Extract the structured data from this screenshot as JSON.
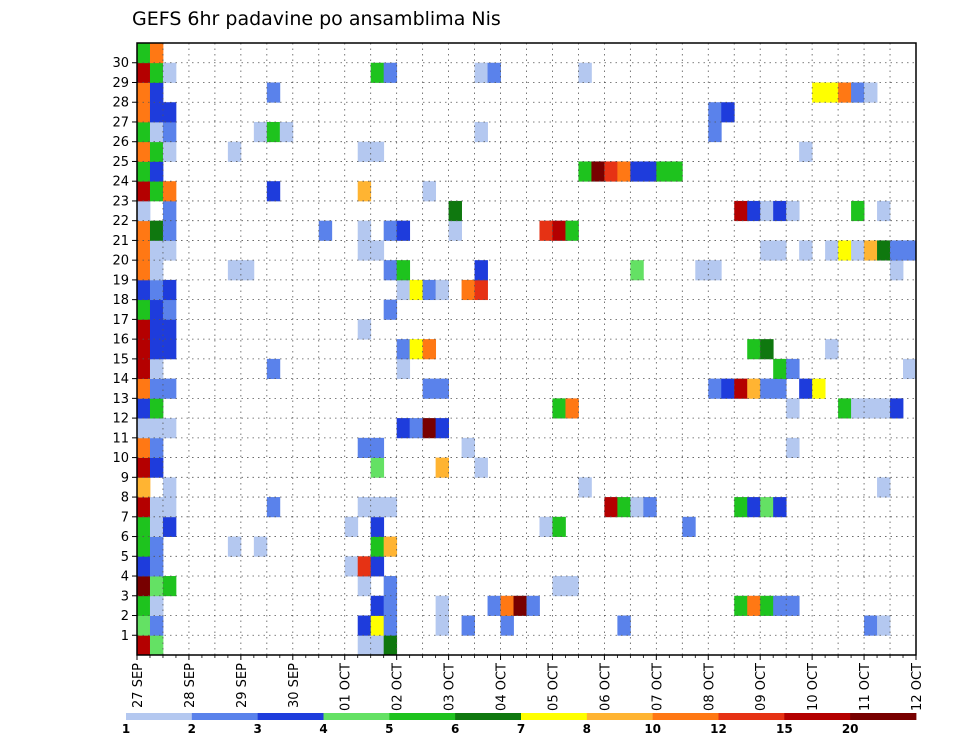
{
  "chart_data": {
    "type": "heatmap",
    "title": "GEFS 6hr padavine po ansamblima Nis",
    "xlabel": "",
    "ylabel": "",
    "x_tick_labels": [
      "27 SEP",
      "28 SEP",
      "29 SEP",
      "30 SEP",
      "01 OCT",
      "02 OCT",
      "03 OCT",
      "04 OCT",
      "05 OCT",
      "06 OCT",
      "07 OCT",
      "08 OCT",
      "09 OCT",
      "10 OCT",
      "11 OCT",
      "12 OCT"
    ],
    "y_tick_labels": [
      "1",
      "2",
      "3",
      "4",
      "5",
      "6",
      "7",
      "8",
      "9",
      "10",
      "11",
      "12",
      "13",
      "14",
      "15",
      "16",
      "17",
      "18",
      "19",
      "20",
      "21",
      "22",
      "23",
      "24",
      "25",
      "26",
      "27",
      "28",
      "29",
      "30"
    ],
    "time_steps": 60,
    "steps_per_day": 4,
    "members": 31,
    "grid": true,
    "legend_placement": "bottom",
    "legend": {
      "labels": [
        "1",
        "2",
        "3",
        "4",
        "5",
        "6",
        "7",
        "8",
        "10",
        "12",
        "15",
        "20"
      ],
      "colors": [
        "#b4c8f0",
        "#5a82eb",
        "#1e3cdc",
        "#64e164",
        "#1ec31e",
        "#0f780f",
        "#ffff00",
        "#ffb432",
        "#ff7814",
        "#e63214",
        "#b40000",
        "#780000"
      ]
    },
    "cells_format": "[time_step, member, precipitation_mm]",
    "cells": [
      [
        0,
        0,
        15
      ],
      [
        1,
        0,
        4
      ],
      [
        0,
        1,
        4
      ],
      [
        1,
        1,
        2
      ],
      [
        0,
        2,
        5
      ],
      [
        1,
        2,
        1
      ],
      [
        1,
        2,
        1
      ],
      [
        0,
        3,
        20
      ],
      [
        1,
        3,
        4
      ],
      [
        2,
        3,
        5
      ],
      [
        0,
        4,
        3
      ],
      [
        1,
        4,
        2
      ],
      [
        0,
        5,
        5
      ],
      [
        1,
        5,
        2
      ],
      [
        0,
        6,
        5
      ],
      [
        1,
        6,
        1
      ],
      [
        2,
        6,
        3
      ],
      [
        0,
        7,
        15
      ],
      [
        1,
        7,
        1
      ],
      [
        2,
        7,
        1
      ],
      [
        0,
        8,
        8
      ],
      [
        2,
        8,
        1
      ],
      [
        0,
        9,
        15
      ],
      [
        1,
        9,
        3
      ],
      [
        0,
        10,
        10
      ],
      [
        1,
        10,
        2
      ],
      [
        0,
        11,
        1
      ],
      [
        1,
        11,
        1
      ],
      [
        2,
        11,
        1
      ],
      [
        0,
        12,
        3
      ],
      [
        1,
        12,
        5
      ],
      [
        0,
        13,
        10
      ],
      [
        1,
        13,
        2
      ],
      [
        2,
        13,
        2
      ],
      [
        0,
        14,
        15
      ],
      [
        1,
        14,
        1
      ],
      [
        0,
        15,
        15
      ],
      [
        1,
        15,
        3
      ],
      [
        2,
        15,
        3
      ],
      [
        0,
        16,
        15
      ],
      [
        1,
        16,
        3
      ],
      [
        2,
        16,
        3
      ],
      [
        0,
        17,
        5
      ],
      [
        1,
        17,
        3
      ],
      [
        2,
        17,
        2
      ],
      [
        0,
        18,
        3
      ],
      [
        1,
        18,
        2
      ],
      [
        2,
        18,
        3
      ],
      [
        0,
        19,
        10
      ],
      [
        1,
        19,
        1
      ],
      [
        0,
        20,
        10
      ],
      [
        1,
        20,
        1
      ],
      [
        2,
        20,
        1
      ],
      [
        0,
        21,
        10
      ],
      [
        1,
        21,
        6
      ],
      [
        2,
        21,
        2
      ],
      [
        0,
        22,
        1
      ],
      [
        2,
        22,
        2
      ],
      [
        0,
        23,
        15
      ],
      [
        1,
        23,
        5
      ],
      [
        2,
        23,
        10
      ],
      [
        0,
        24,
        5
      ],
      [
        1,
        24,
        3
      ],
      [
        0,
        25,
        10
      ],
      [
        1,
        25,
        5
      ],
      [
        2,
        25,
        1
      ],
      [
        0,
        26,
        5
      ],
      [
        1,
        26,
        1
      ],
      [
        2,
        26,
        2
      ],
      [
        0,
        27,
        10
      ],
      [
        1,
        27,
        3
      ],
      [
        2,
        27,
        3
      ],
      [
        0,
        28,
        10
      ],
      [
        1,
        28,
        3
      ],
      [
        0,
        29,
        15
      ],
      [
        1,
        29,
        5
      ],
      [
        2,
        29,
        1
      ],
      [
        0,
        30,
        5
      ],
      [
        1,
        30,
        10
      ],
      [
        17,
        0,
        1
      ],
      [
        18,
        0,
        1
      ],
      [
        19,
        0,
        6
      ],
      [
        17,
        1,
        3
      ],
      [
        18,
        1,
        7
      ],
      [
        19,
        1,
        2
      ],
      [
        23,
        1,
        1
      ],
      [
        25,
        1,
        2
      ],
      [
        28,
        1,
        2
      ],
      [
        37,
        1,
        2
      ],
      [
        56,
        1,
        2
      ],
      [
        57,
        1,
        1
      ],
      [
        18,
        2,
        3
      ],
      [
        19,
        2,
        2
      ],
      [
        23,
        2,
        1
      ],
      [
        27,
        2,
        2
      ],
      [
        28,
        2,
        10
      ],
      [
        29,
        2,
        20
      ],
      [
        30,
        2,
        2
      ],
      [
        46,
        2,
        5
      ],
      [
        47,
        2,
        10
      ],
      [
        48,
        2,
        5
      ],
      [
        49,
        2,
        2
      ],
      [
        50,
        2,
        2
      ],
      [
        17,
        3,
        1
      ],
      [
        19,
        3,
        2
      ],
      [
        32,
        3,
        1
      ],
      [
        33,
        3,
        1
      ],
      [
        16,
        4,
        1
      ],
      [
        17,
        4,
        12
      ],
      [
        18,
        4,
        3
      ],
      [
        7,
        5,
        1
      ],
      [
        9,
        5,
        1
      ],
      [
        18,
        5,
        5
      ],
      [
        19,
        5,
        8
      ],
      [
        16,
        6,
        1
      ],
      [
        18,
        6,
        3
      ],
      [
        31,
        6,
        1
      ],
      [
        32,
        6,
        5
      ],
      [
        42,
        6,
        2
      ],
      [
        10,
        7,
        2
      ],
      [
        17,
        7,
        1
      ],
      [
        18,
        7,
        1
      ],
      [
        19,
        7,
        1
      ],
      [
        36,
        7,
        15
      ],
      [
        37,
        7,
        5
      ],
      [
        38,
        7,
        1
      ],
      [
        39,
        7,
        2
      ],
      [
        46,
        7,
        5
      ],
      [
        47,
        7,
        3
      ],
      [
        48,
        7,
        4
      ],
      [
        49,
        7,
        3
      ],
      [
        34,
        8,
        1
      ],
      [
        57,
        8,
        1
      ],
      [
        18,
        9,
        4
      ],
      [
        23,
        9,
        8
      ],
      [
        26,
        9,
        1
      ],
      [
        17,
        10,
        2
      ],
      [
        18,
        10,
        2
      ],
      [
        25,
        10,
        1
      ],
      [
        50,
        10,
        1
      ],
      [
        20,
        11,
        3
      ],
      [
        21,
        11,
        2
      ],
      [
        22,
        11,
        20
      ],
      [
        23,
        11,
        3
      ],
      [
        32,
        12,
        5
      ],
      [
        33,
        12,
        10
      ],
      [
        50,
        12,
        1
      ],
      [
        54,
        12,
        5
      ],
      [
        55,
        12,
        1
      ],
      [
        56,
        12,
        1
      ],
      [
        57,
        12,
        1
      ],
      [
        58,
        12,
        3
      ],
      [
        22,
        13,
        2
      ],
      [
        23,
        13,
        2
      ],
      [
        44,
        13,
        2
      ],
      [
        45,
        13,
        3
      ],
      [
        46,
        13,
        15
      ],
      [
        47,
        13,
        8
      ],
      [
        48,
        13,
        2
      ],
      [
        49,
        13,
        2
      ],
      [
        51,
        13,
        3
      ],
      [
        52,
        13,
        7
      ],
      [
        10,
        14,
        2
      ],
      [
        20,
        14,
        1
      ],
      [
        49,
        14,
        5
      ],
      [
        50,
        14,
        2
      ],
      [
        59,
        14,
        1
      ],
      [
        20,
        15,
        2
      ],
      [
        21,
        15,
        7
      ],
      [
        22,
        15,
        10
      ],
      [
        47,
        15,
        5
      ],
      [
        48,
        15,
        6
      ],
      [
        53,
        15,
        1
      ],
      [
        17,
        16,
        1
      ],
      [
        19,
        17,
        2
      ],
      [
        20,
        18,
        1
      ],
      [
        21,
        18,
        7
      ],
      [
        22,
        18,
        2
      ],
      [
        23,
        18,
        1
      ],
      [
        25,
        18,
        10
      ],
      [
        26,
        18,
        12
      ],
      [
        7,
        19,
        1
      ],
      [
        8,
        19,
        1
      ],
      [
        19,
        19,
        2
      ],
      [
        20,
        19,
        5
      ],
      [
        26,
        19,
        3
      ],
      [
        38,
        19,
        4
      ],
      [
        43,
        19,
        1
      ],
      [
        44,
        19,
        1
      ],
      [
        58,
        19,
        1
      ],
      [
        17,
        20,
        1
      ],
      [
        18,
        20,
        1
      ],
      [
        48,
        20,
        1
      ],
      [
        49,
        20,
        1
      ],
      [
        51,
        20,
        1
      ],
      [
        53,
        20,
        1
      ],
      [
        54,
        20,
        7
      ],
      [
        55,
        20,
        1
      ],
      [
        56,
        20,
        8
      ],
      [
        57,
        20,
        6
      ],
      [
        58,
        20,
        2
      ],
      [
        59,
        20,
        2
      ],
      [
        14,
        21,
        2
      ],
      [
        17,
        21,
        1
      ],
      [
        19,
        21,
        2
      ],
      [
        20,
        21,
        3
      ],
      [
        24,
        21,
        1
      ],
      [
        31,
        21,
        12
      ],
      [
        32,
        21,
        15
      ],
      [
        33,
        21,
        5
      ],
      [
        24,
        22,
        6
      ],
      [
        46,
        22,
        15
      ],
      [
        47,
        22,
        3
      ],
      [
        48,
        22,
        1
      ],
      [
        49,
        22,
        3
      ],
      [
        50,
        22,
        1
      ],
      [
        55,
        22,
        5
      ],
      [
        57,
        22,
        1
      ],
      [
        10,
        23,
        3
      ],
      [
        17,
        23,
        8
      ],
      [
        22,
        23,
        1
      ],
      [
        34,
        24,
        5
      ],
      [
        35,
        24,
        20
      ],
      [
        36,
        24,
        12
      ],
      [
        37,
        24,
        10
      ],
      [
        38,
        24,
        3
      ],
      [
        39,
        24,
        3
      ],
      [
        40,
        24,
        5
      ],
      [
        41,
        24,
        5
      ],
      [
        7,
        25,
        1
      ],
      [
        17,
        25,
        1
      ],
      [
        18,
        25,
        1
      ],
      [
        51,
        25,
        1
      ],
      [
        9,
        26,
        1
      ],
      [
        10,
        26,
        5
      ],
      [
        11,
        26,
        1
      ],
      [
        26,
        26,
        1
      ],
      [
        44,
        26,
        2
      ],
      [
        44,
        27,
        2
      ],
      [
        45,
        27,
        3
      ],
      [
        10,
        28,
        2
      ],
      [
        52,
        28,
        7
      ],
      [
        53,
        28,
        7
      ],
      [
        54,
        28,
        10
      ],
      [
        55,
        28,
        2
      ],
      [
        56,
        28,
        1
      ],
      [
        18,
        29,
        5
      ],
      [
        19,
        29,
        2
      ],
      [
        26,
        29,
        1
      ],
      [
        27,
        29,
        2
      ],
      [
        34,
        29,
        1
      ]
    ]
  }
}
